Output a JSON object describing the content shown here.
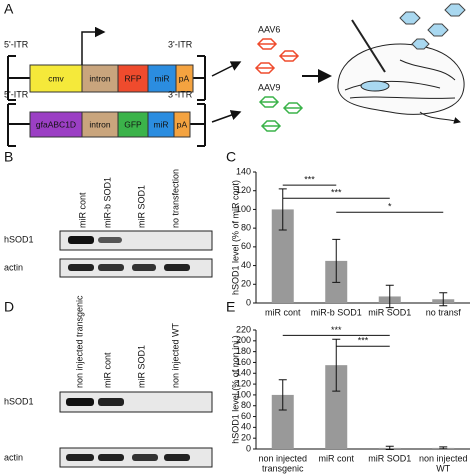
{
  "panel_a": {
    "label": "A",
    "constructs": [
      {
        "left_itr": "5'-ITR",
        "right_itr": "3'-ITR",
        "elements": [
          "cmv",
          "intron",
          "RFP",
          "miR",
          "pA"
        ]
      },
      {
        "left_itr": "5'-ITR",
        "right_itr": "3'-ITR",
        "elements": [
          "gfaABC1D",
          "intron",
          "GFP",
          "miR",
          "pA"
        ]
      }
    ],
    "vectors": [
      "AAV6",
      "AAV9"
    ]
  },
  "panel_b": {
    "label": "B",
    "lanes": [
      "miR cont",
      "miR-b SOD1",
      "miR SOD1",
      "no transfection"
    ],
    "rows": [
      "hSOD1",
      "actin"
    ]
  },
  "panel_d": {
    "label": "D",
    "lanes": [
      "non injected transgenic",
      "miR cont",
      "miR SOD1",
      "non injected WT"
    ],
    "rows": [
      "hSOD1",
      "actin"
    ]
  },
  "chart_data": [
    {
      "type": "bar",
      "panel": "C",
      "ylabel": "hSOD1 level (% of miR cont)",
      "categories": [
        "miR cont",
        "miR-b SOD1",
        "miR SOD1",
        "no transf"
      ],
      "values": [
        100,
        45,
        7,
        4
      ],
      "errors": [
        22,
        23,
        12,
        7
      ],
      "color": "#999999",
      "ylim": [
        0,
        140
      ],
      "yticks": [
        0,
        20,
        40,
        60,
        80,
        100,
        120,
        140
      ],
      "annotations": [
        {
          "label": "***",
          "categories": [
            0,
            1
          ],
          "y": 126
        },
        {
          "label": "***",
          "categories": [
            0,
            2
          ],
          "y": 112
        },
        {
          "label": "*",
          "categories": [
            1,
            3
          ],
          "y": 97
        }
      ]
    },
    {
      "type": "bar",
      "panel": "E",
      "ylabel": "hSOD1 level (% of non inj.)",
      "categories": [
        [
          "non injected",
          "transgenic"
        ],
        [
          "miR cont"
        ],
        [
          "miR SOD1"
        ],
        [
          "non injected",
          "WT"
        ]
      ],
      "values": [
        100,
        155,
        2,
        2
      ],
      "errors": [
        28,
        48,
        3,
        2
      ],
      "color": "#999999",
      "ylim": [
        0,
        220
      ],
      "yticks": [
        0,
        20,
        40,
        60,
        80,
        100,
        120,
        140,
        160,
        180,
        200,
        220
      ],
      "annotations": [
        {
          "label": "***",
          "categories": [
            0,
            2
          ],
          "y": 210
        },
        {
          "label": "***",
          "categories": [
            1,
            2
          ],
          "y": 190
        }
      ]
    }
  ]
}
